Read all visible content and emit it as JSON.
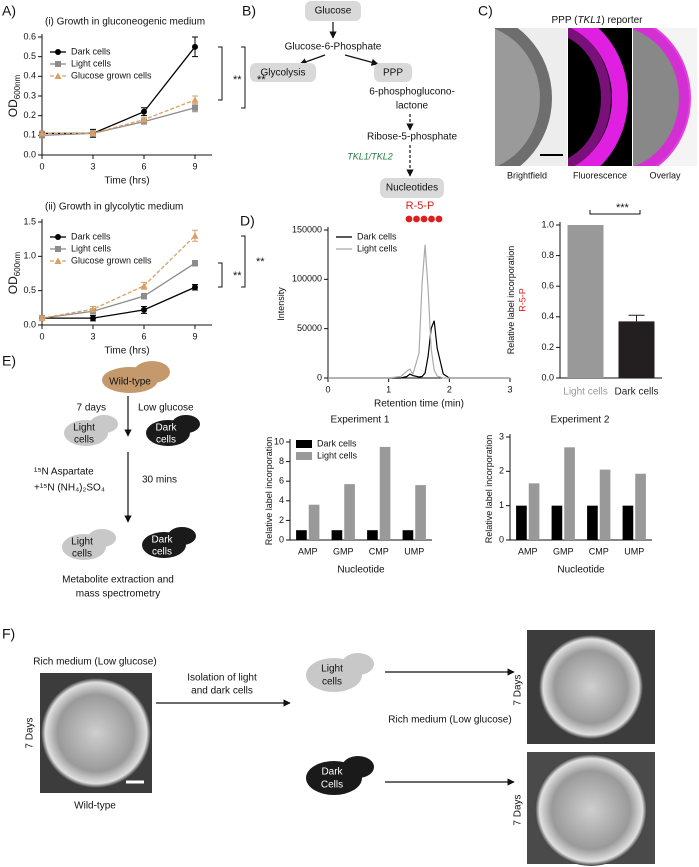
{
  "panel_labels": [
    "A)",
    "B)",
    "C)",
    "D)",
    "E)",
    "F)"
  ],
  "chart_data": [
    {
      "type": "line",
      "title": "(i) Growth in gluconeogenic medium",
      "ylabel": "OD",
      "ylabel_sub": "600nm",
      "xlabel": "Time (hrs)",
      "x": [
        0,
        3,
        6,
        9
      ],
      "xlim": [
        0,
        10
      ],
      "xticks": [
        0,
        3,
        6,
        9
      ],
      "ylim": [
        0,
        0.6
      ],
      "yticks": [
        {
          "value": 0,
          "label": "0.0"
        },
        0.1,
        0.2,
        0.3,
        0.4,
        0.5,
        0.6
      ],
      "series": [
        {
          "name": "Dark cells",
          "color": "#000000",
          "marker": "circle",
          "values": [
            0.11,
            0.11,
            0.22,
            0.55
          ],
          "errors": [
            0.01,
            0.02,
            0.02,
            0.05
          ]
        },
        {
          "name": "Light cells",
          "color": "#8c8c8c",
          "marker": "square",
          "values": [
            0.1,
            0.11,
            0.17,
            0.24
          ],
          "errors": [
            0.01,
            0.01,
            0.01,
            0.02
          ]
        },
        {
          "name": "Glucose grown cells",
          "color": "#d9a066",
          "marker": "triangle",
          "dash": true,
          "values": [
            0.11,
            0.11,
            0.18,
            0.28
          ],
          "errors": [
            0.01,
            0.01,
            0.01,
            0.02
          ]
        }
      ],
      "annotations": [
        "**",
        "**"
      ]
    },
    {
      "type": "line",
      "title": "(ii) Growth in glycolytic medium",
      "ylabel": "OD",
      "ylabel_sub": "600nm",
      "xlabel": "Time (hrs)",
      "x": [
        0,
        3,
        6,
        9
      ],
      "xlim": [
        0,
        10
      ],
      "xticks": [
        0,
        3,
        6,
        9
      ],
      "ylim": [
        0,
        1.5
      ],
      "yticks": [
        {
          "value": 0,
          "label": "0.0"
        },
        0.5,
        {
          "value": 1,
          "label": "1.0"
        },
        1.5
      ],
      "series": [
        {
          "name": "Dark cells",
          "color": "#000000",
          "marker": "circle",
          "values": [
            0.1,
            0.1,
            0.22,
            0.55
          ],
          "errors": [
            0.02,
            0.04,
            0.05,
            0.04
          ]
        },
        {
          "name": "Light cells",
          "color": "#8c8c8c",
          "marker": "square",
          "values": [
            0.1,
            0.2,
            0.42,
            0.9
          ],
          "errors": [
            0.02,
            0.03,
            0.04,
            0.04
          ]
        },
        {
          "name": "Glucose grown cells",
          "color": "#d9a066",
          "marker": "triangle",
          "dash": true,
          "values": [
            0.1,
            0.23,
            0.57,
            1.3
          ],
          "errors": [
            0.02,
            0.04,
            0.05,
            0.08
          ]
        }
      ],
      "annotations": [
        "**",
        "**"
      ]
    },
    {
      "type": "line",
      "xlabel": "Retention time (min)",
      "ylabel": "Intensity",
      "x": [
        0,
        1,
        1.2,
        1.3,
        1.35,
        1.4,
        1.5,
        1.55,
        1.6,
        1.65,
        1.7,
        1.75,
        1.8,
        1.9,
        2,
        3
      ],
      "xlim": [
        0,
        3
      ],
      "xticks": [
        0,
        1,
        2,
        3
      ],
      "ylim": [
        0,
        150000
      ],
      "yticks": [
        0,
        50000,
        100000,
        150000
      ],
      "series": [
        {
          "name": "Dark cells",
          "color": "#000000",
          "values": [
            0,
            0,
            0,
            1500,
            4000,
            2500,
            1000,
            1500,
            5000,
            22000,
            50000,
            58000,
            30000,
            4000,
            0,
            0
          ]
        },
        {
          "name": "Light cells",
          "color": "#aaaaaa",
          "values": [
            0,
            0,
            1500,
            7000,
            9000,
            4000,
            25000,
            95000,
            135000,
            90000,
            30000,
            8000,
            2000,
            0,
            0,
            0
          ]
        }
      ],
      "annotations": [
        "R-5-P"
      ]
    },
    {
      "type": "bar",
      "ylabel": "Relative label incorporation",
      "ylabel2": "R-5-P",
      "categories": [
        "Light cells",
        "Dark cells"
      ],
      "values": [
        1.0,
        0.37
      ],
      "errors": [
        null,
        0.04
      ],
      "colors": [
        "#999999",
        "#231f20"
      ],
      "ylim": [
        0,
        1
      ],
      "yticks": [
        {
          "value": 0,
          "label": "0.0"
        },
        0.2,
        0.4,
        0.6,
        0.8,
        {
          "value": 1,
          "label": "1.0"
        }
      ],
      "annotations": [
        "***"
      ]
    },
    {
      "type": "grouped-bar",
      "title": "Experiment 1",
      "xlabel": "Nucleotide",
      "ylabel": "Relative label incorporation",
      "categories": [
        "AMP",
        "GMP",
        "CMP",
        "UMP"
      ],
      "ylim": [
        0,
        10
      ],
      "yticks": [
        0,
        2,
        4,
        6,
        8,
        10
      ],
      "series": [
        {
          "name": "Dark cells",
          "color": "#000000",
          "values": [
            1,
            1,
            1,
            1
          ]
        },
        {
          "name": "Light cells",
          "color": "#999999",
          "values": [
            3.6,
            5.7,
            9.5,
            5.6
          ]
        }
      ]
    },
    {
      "type": "grouped-bar",
      "title": "Experiment 2",
      "xlabel": "Nucleotide",
      "ylabel": "Relative label incorporation",
      "categories": [
        "AMP",
        "GMP",
        "CMP",
        "UMP"
      ],
      "ylim": [
        0,
        3
      ],
      "yticks": [
        0,
        1,
        2,
        3
      ],
      "series": [
        {
          "color": "#000000",
          "values": [
            1,
            1,
            1,
            1
          ]
        },
        {
          "color": "#999999",
          "values": [
            1.65,
            2.7,
            2.05,
            1.93
          ]
        }
      ]
    }
  ],
  "pathway": {
    "glucose": "Glucose",
    "g6p": "Glucose-6-Phosphate",
    "glycolysis": "Glycolysis",
    "ppp": "PPP",
    "lactone": [
      "6-phosphoglucono-",
      "lactone"
    ],
    "r5p": "Ribose-5-phosphate",
    "enzymes": "TKL1/TKL2",
    "nucleotides": "Nucleotides"
  },
  "reporter": {
    "title": {
      "pre": "PPP (",
      "gene": "TKL1",
      "post": ") reporter"
    },
    "labels": [
      "Brightfield",
      "Fluorescence",
      "Overlay"
    ]
  },
  "labeling": {
    "wildtype": "Wild-type",
    "days": "7 days",
    "low": "Low glucose",
    "light1": [
      "Light",
      "cells"
    ],
    "dark1": [
      "Dark",
      "cells"
    ],
    "n15a": "¹⁵N Aspartate",
    "n15b": "+¹⁵N (NH₄)₂SO₄",
    "mins": "30 mins",
    "light2": [
      "Light",
      "cells"
    ],
    "dark2": [
      "Dark",
      "cells"
    ],
    "extraction": [
      "Metabolite extraction and",
      "mass spectrometry"
    ]
  },
  "isolation": {
    "medium_left": "Rich medium (Low glucose)",
    "days_left": "7 Days",
    "wildtype": "Wild-type",
    "isolation": [
      "Isolation of light",
      "and dark cells"
    ],
    "light": [
      "Light",
      "cells"
    ],
    "dark": [
      "Dark",
      "Cells"
    ],
    "medium_right": "Rich medium (Low glucose)",
    "days_top": "7 Days",
    "days_bottom": "7 Days"
  }
}
